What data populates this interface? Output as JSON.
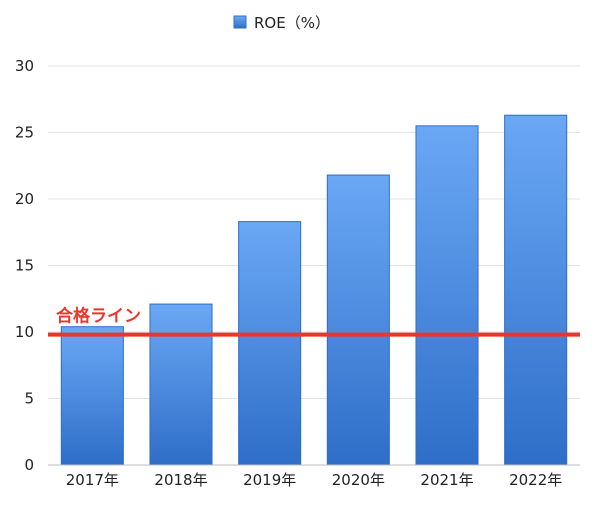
{
  "chart_data": {
    "type": "bar",
    "categories": [
      "2017年",
      "2018年",
      "2019年",
      "2020年",
      "2021年",
      "2022年"
    ],
    "series": [
      {
        "name": "ROE（%）",
        "values": [
          10.4,
          12.1,
          18.3,
          21.8,
          25.5,
          26.3
        ]
      }
    ],
    "ylim": [
      0,
      30
    ],
    "yticks": [
      "0",
      "5",
      "10",
      "15",
      "20",
      "25",
      "30"
    ],
    "grid": true,
    "legend": "top-center",
    "threshold": {
      "label": "合格ライン",
      "value": 9.8,
      "color": "#e8372a"
    },
    "bar_color_top": "#6aa8f5",
    "bar_color_bottom": "#2f6ec8"
  }
}
